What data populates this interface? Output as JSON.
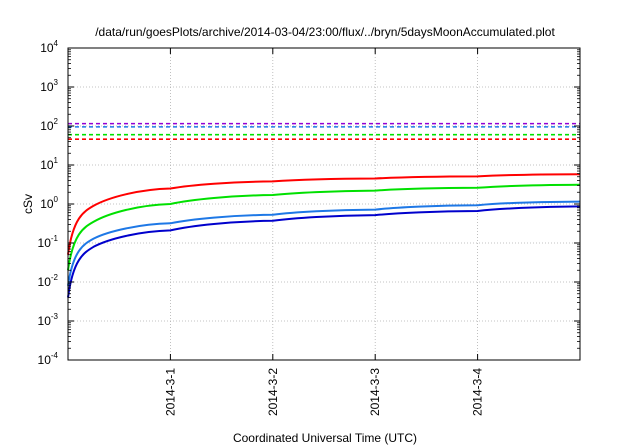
{
  "chart_data": {
    "type": "line",
    "title": "/data/run/goesPlots/archive/2014-03-04/23:00/flux/../bryn/5daysMoonAccumulated.plot",
    "xlabel": "Coordinated Universal Time (UTC)",
    "ylabel": "cSv",
    "yscale": "log",
    "ylim": [
      0.0001,
      10000
    ],
    "xlim": [
      "2014-02-28",
      "2014-03-05"
    ],
    "y_ticks": [
      {
        "base": "10",
        "exp": "-4",
        "value": 0.0001
      },
      {
        "base": "10",
        "exp": "-3",
        "value": 0.001
      },
      {
        "base": "10",
        "exp": "-2",
        "value": 0.01
      },
      {
        "base": "10",
        "exp": "-1",
        "value": 0.1
      },
      {
        "base": "10",
        "exp": "0",
        "value": 1
      },
      {
        "base": "10",
        "exp": "1",
        "value": 10
      },
      {
        "base": "10",
        "exp": "2",
        "value": 100
      },
      {
        "base": "10",
        "exp": "3",
        "value": 1000
      },
      {
        "base": "10",
        "exp": "4",
        "value": 10000
      }
    ],
    "x_ticks": [
      {
        "label": "2014-3-1",
        "value": "2014-03-01"
      },
      {
        "label": "2014-3-2",
        "value": "2014-03-02"
      },
      {
        "label": "2014-3-3",
        "value": "2014-03-03"
      },
      {
        "label": "2014-3-4",
        "value": "2014-03-04"
      }
    ],
    "grid": true,
    "series": [
      {
        "color": "#ff0000",
        "x": [
          "2014-02-28",
          "2014-02-28 06:00",
          "2014-03-01",
          "2014-03-02",
          "2014-03-03",
          "2014-03-04",
          "2014-03-05"
        ],
        "values": [
          0.05,
          0.9,
          2.5,
          3.8,
          4.5,
          5.1,
          5.8
        ]
      },
      {
        "color": "#00e000",
        "x": [
          "2014-02-28",
          "2014-02-28 06:00",
          "2014-03-01",
          "2014-03-02",
          "2014-03-03",
          "2014-03-04",
          "2014-03-05"
        ],
        "values": [
          0.02,
          0.35,
          1.0,
          1.7,
          2.2,
          2.6,
          3.1
        ]
      },
      {
        "color": "#1e78e6",
        "x": [
          "2014-02-28",
          "2014-02-28 06:00",
          "2014-03-01",
          "2014-03-02",
          "2014-03-03",
          "2014-03-04",
          "2014-03-05"
        ],
        "values": [
          0.008,
          0.13,
          0.32,
          0.53,
          0.72,
          0.93,
          1.15
        ]
      },
      {
        "color": "#0000cc",
        "x": [
          "2014-02-28",
          "2014-02-28 06:00",
          "2014-03-01",
          "2014-03-02",
          "2014-03-03",
          "2014-03-04",
          "2014-03-05"
        ],
        "values": [
          0.004,
          0.08,
          0.21,
          0.37,
          0.52,
          0.66,
          0.87
        ]
      }
    ],
    "reference_lines": [
      {
        "color": "#9400d3",
        "style": "dashed",
        "value": 115
      },
      {
        "color": "#1e78e6",
        "style": "dashed",
        "value": 95
      },
      {
        "color": "#00e000",
        "style": "dashed",
        "value": 60
      },
      {
        "color": "#ff0000",
        "style": "dashed",
        "value": 46
      }
    ]
  }
}
